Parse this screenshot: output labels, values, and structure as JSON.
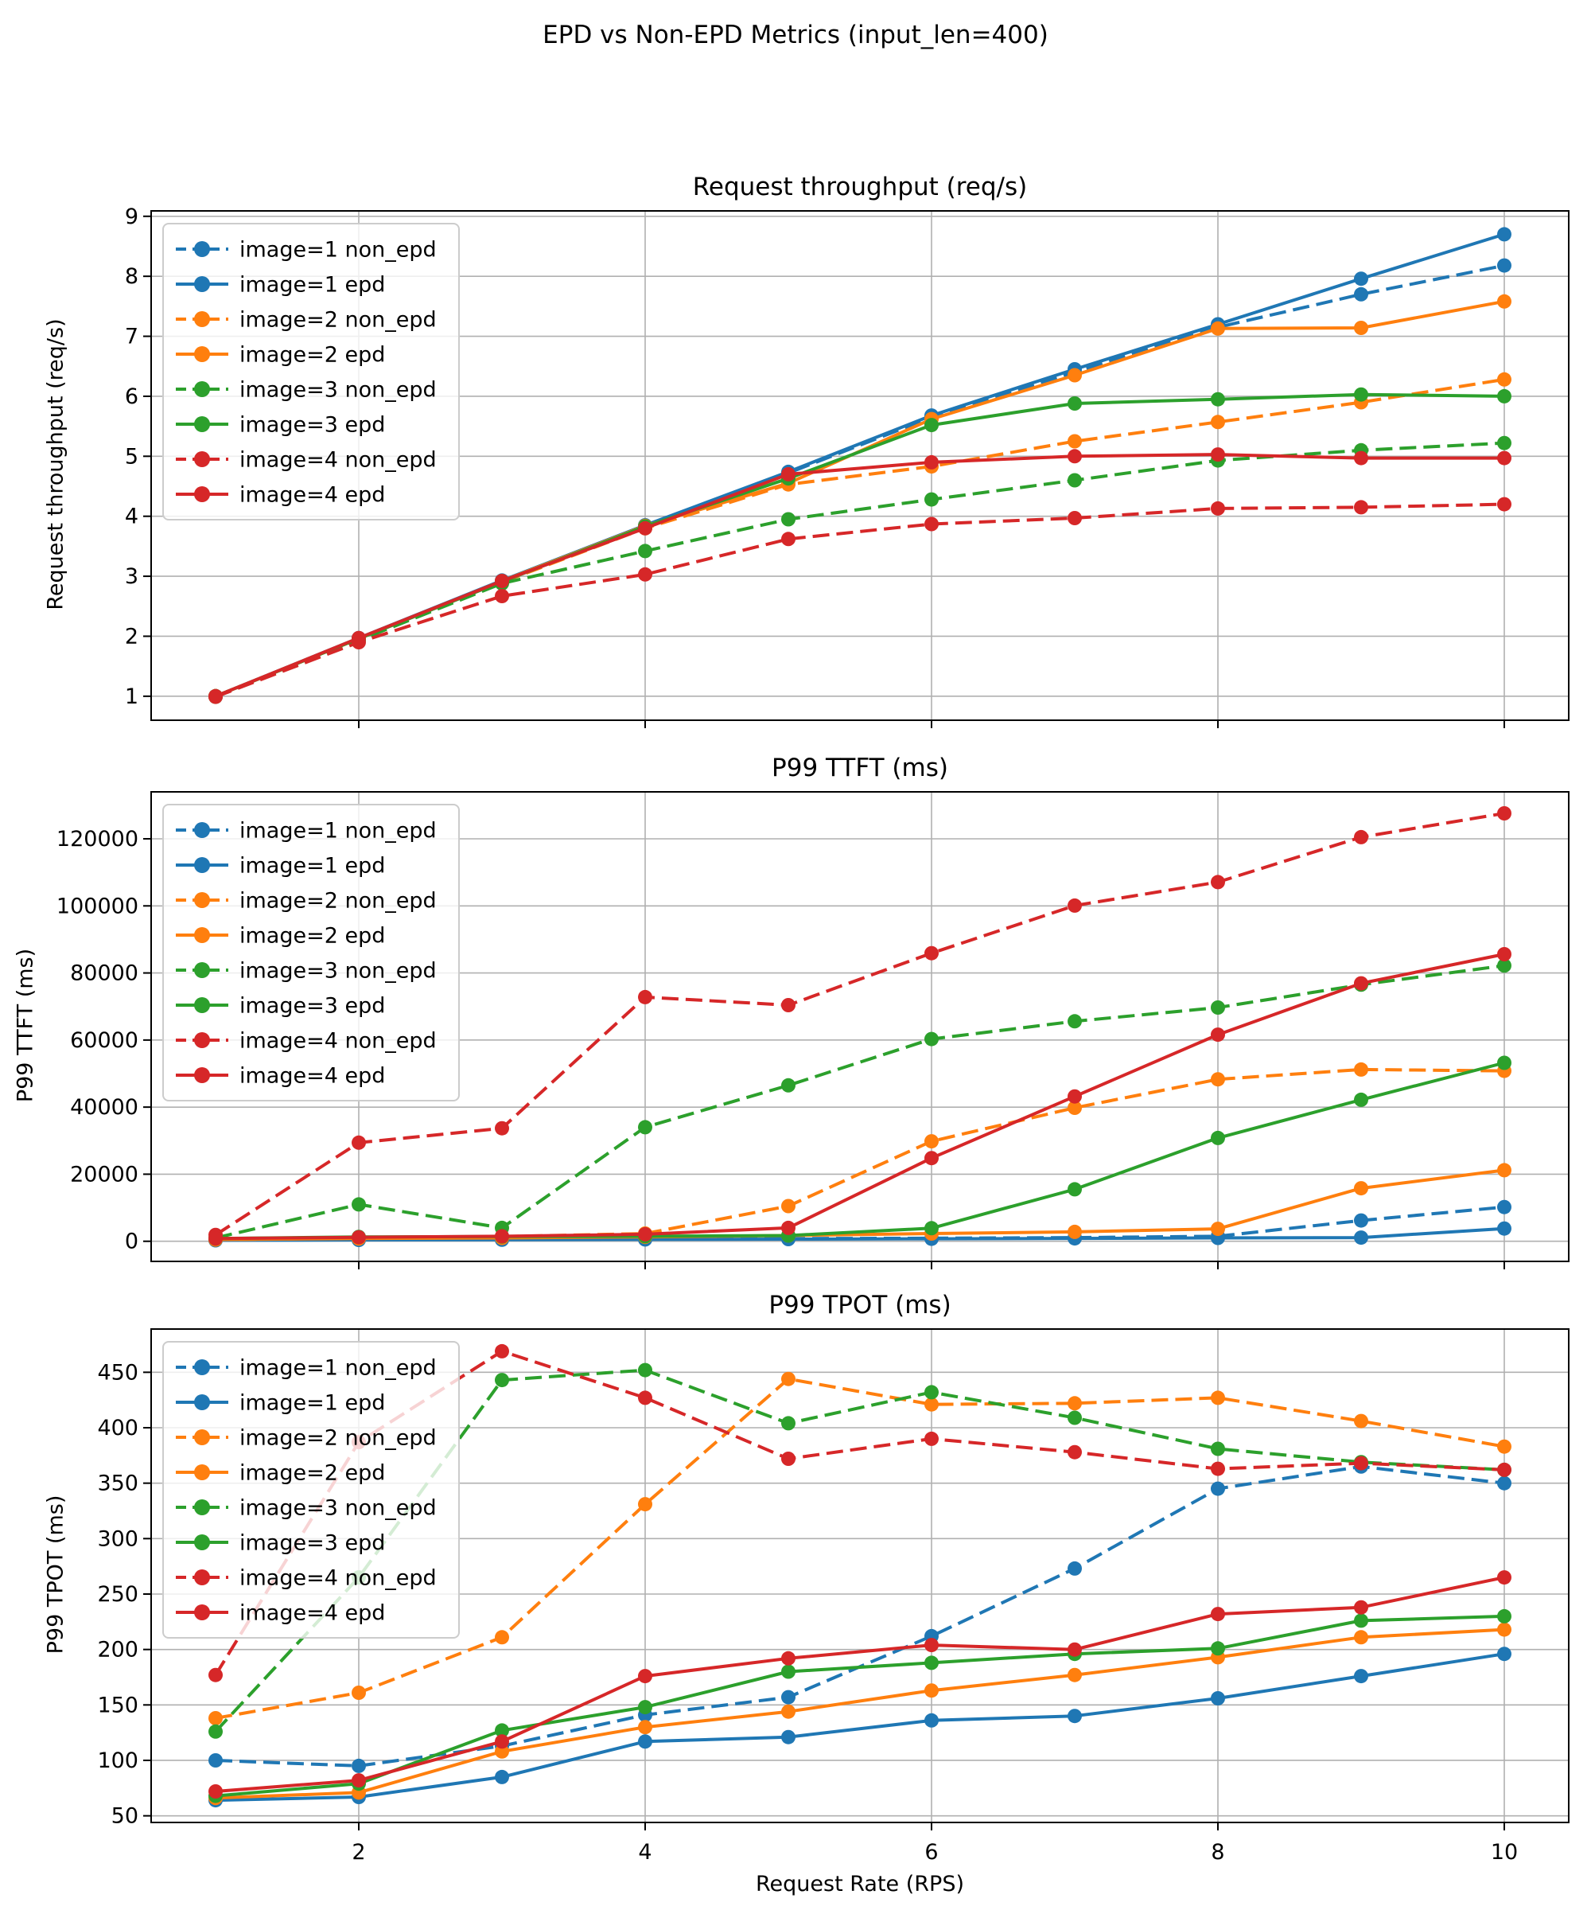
{
  "figure": {
    "suptitle": "EPD vs Non-EPD Metrics (input_len=400)",
    "xlabel": "Request Rate (RPS)",
    "x": [
      1,
      2,
      3,
      4,
      5,
      6,
      7,
      8,
      9,
      10
    ],
    "xticks": [
      2,
      4,
      6,
      8,
      10
    ],
    "xlim": [
      0.55,
      10.45
    ],
    "grid_color": "#b0b0b0",
    "spine_color": "#000000",
    "legend_border_color": "#cccccc",
    "colors": {
      "blue": "#1f77b4",
      "orange": "#ff7f0e",
      "green": "#2ca02c",
      "red": "#d62728"
    },
    "series_meta": [
      {
        "label": "image=1 non_epd",
        "color": "blue",
        "dashed": true
      },
      {
        "label": "image=1 epd",
        "color": "blue",
        "dashed": false
      },
      {
        "label": "image=2 non_epd",
        "color": "orange",
        "dashed": true
      },
      {
        "label": "image=2 epd",
        "color": "orange",
        "dashed": false
      },
      {
        "label": "image=3 non_epd",
        "color": "green",
        "dashed": true
      },
      {
        "label": "image=3 epd",
        "color": "green",
        "dashed": false
      },
      {
        "label": "image=4 non_epd",
        "color": "red",
        "dashed": true
      },
      {
        "label": "image=4 epd",
        "color": "red",
        "dashed": false
      }
    ]
  },
  "chart_data": [
    {
      "type": "line",
      "title": "Request throughput (req/s)",
      "ylabel": "Request throughput (req/s)",
      "ylim": [
        0.6,
        9.09
      ],
      "yticks": [
        1,
        2,
        3,
        4,
        5,
        6,
        7,
        8,
        9
      ],
      "x": [
        1,
        2,
        3,
        4,
        5,
        6,
        7,
        8,
        9,
        10
      ],
      "legend_position": "upper-left",
      "grid": true,
      "series": [
        {
          "name": "image=1 non_epd",
          "values": [
            1.0,
            1.95,
            2.9,
            3.83,
            4.72,
            5.65,
            6.4,
            7.15,
            7.7,
            8.18
          ]
        },
        {
          "name": "image=1 epd",
          "values": [
            1.0,
            1.97,
            2.93,
            3.85,
            4.74,
            5.68,
            6.45,
            7.2,
            7.96,
            8.7
          ]
        },
        {
          "name": "image=2 non_epd",
          "values": [
            1.0,
            1.95,
            2.9,
            3.8,
            4.53,
            4.83,
            5.25,
            5.57,
            5.9,
            6.28
          ]
        },
        {
          "name": "image=2 epd",
          "values": [
            1.0,
            1.96,
            2.92,
            3.84,
            4.55,
            5.62,
            6.35,
            7.13,
            7.14,
            7.58
          ]
        },
        {
          "name": "image=3 non_epd",
          "values": [
            0.99,
            1.93,
            2.88,
            3.42,
            3.95,
            4.28,
            4.6,
            4.93,
            5.1,
            5.22
          ]
        },
        {
          "name": "image=3 epd",
          "values": [
            1.0,
            1.96,
            2.91,
            3.83,
            4.63,
            5.52,
            5.88,
            5.95,
            6.03,
            6.0
          ]
        },
        {
          "name": "image=4 non_epd",
          "values": [
            0.99,
            1.9,
            2.67,
            3.03,
            3.62,
            3.87,
            3.97,
            4.13,
            4.15,
            4.2
          ]
        },
        {
          "name": "image=4 epd",
          "values": [
            1.0,
            1.97,
            2.92,
            3.8,
            4.7,
            4.9,
            5.0,
            5.03,
            4.97,
            4.97
          ]
        }
      ]
    },
    {
      "type": "line",
      "title": "P99 TTFT (ms)",
      "ylabel": "P99 TTFT (ms)",
      "ylim": [
        -6000,
        134000
      ],
      "yticks": [
        0,
        20000,
        40000,
        60000,
        80000,
        100000,
        120000
      ],
      "x": [
        1,
        2,
        3,
        4,
        5,
        6,
        7,
        8,
        9,
        10
      ],
      "legend_position": "upper-left",
      "grid": true,
      "series": [
        {
          "name": "image=1 non_epd",
          "values": [
            400,
            500,
            600,
            700,
            800,
            900,
            1100,
            1500,
            6200,
            10200
          ]
        },
        {
          "name": "image=1 epd",
          "values": [
            300,
            400,
            450,
            550,
            650,
            750,
            850,
            1000,
            1100,
            3800
          ]
        },
        {
          "name": "image=2 non_epd",
          "values": [
            500,
            900,
            1400,
            2300,
            10500,
            29800,
            39800,
            48300,
            51200,
            50800
          ]
        },
        {
          "name": "image=2 epd",
          "values": [
            500,
            800,
            1000,
            1300,
            1700,
            2300,
            2800,
            3700,
            15800,
            21200
          ]
        },
        {
          "name": "image=3 non_epd",
          "values": [
            1000,
            11000,
            4000,
            34000,
            46500,
            60300,
            65600,
            69700,
            76500,
            82200
          ]
        },
        {
          "name": "image=3 epd",
          "values": [
            800,
            1300,
            1400,
            1500,
            1700,
            3900,
            15500,
            30800,
            42200,
            53200
          ]
        },
        {
          "name": "image=4 non_epd",
          "values": [
            1900,
            29400,
            33700,
            72800,
            70400,
            85900,
            100100,
            107100,
            120500,
            127600
          ]
        },
        {
          "name": "image=4 epd",
          "values": [
            800,
            1200,
            1500,
            2100,
            4000,
            24800,
            43200,
            61600,
            76900,
            85600
          ]
        }
      ]
    },
    {
      "type": "line",
      "title": "P99 TPOT (ms)",
      "ylabel": "P99 TPOT (ms)",
      "ylim": [
        44,
        489
      ],
      "yticks": [
        50,
        100,
        150,
        200,
        250,
        300,
        350,
        400,
        450
      ],
      "x": [
        1,
        2,
        3,
        4,
        5,
        6,
        7,
        8,
        9,
        10
      ],
      "legend_position": "upper-left",
      "grid": true,
      "series": [
        {
          "name": "image=1 non_epd",
          "values": [
            100,
            95,
            113,
            141,
            157,
            212,
            273,
            345,
            365,
            350
          ]
        },
        {
          "name": "image=1 epd",
          "values": [
            64,
            67,
            85,
            117,
            121,
            136,
            140,
            156,
            176,
            196
          ]
        },
        {
          "name": "image=2 non_epd",
          "values": [
            138,
            161,
            211,
            331,
            444,
            421,
            422,
            427,
            406,
            383
          ]
        },
        {
          "name": "image=2 epd",
          "values": [
            66,
            71,
            108,
            130,
            144,
            163,
            177,
            193,
            211,
            218
          ]
        },
        {
          "name": "image=3 non_epd",
          "values": [
            126,
            265,
            443,
            452,
            404,
            432,
            409,
            381,
            369,
            362
          ]
        },
        {
          "name": "image=3 epd",
          "values": [
            68,
            79,
            127,
            148,
            180,
            188,
            196,
            201,
            226,
            230
          ]
        },
        {
          "name": "image=4 non_epd",
          "values": [
            177,
            387,
            469,
            427,
            372,
            390,
            378,
            363,
            368,
            362
          ]
        },
        {
          "name": "image=4 epd",
          "values": [
            72,
            82,
            117,
            176,
            192,
            204,
            200,
            232,
            238,
            265
          ]
        }
      ]
    }
  ]
}
